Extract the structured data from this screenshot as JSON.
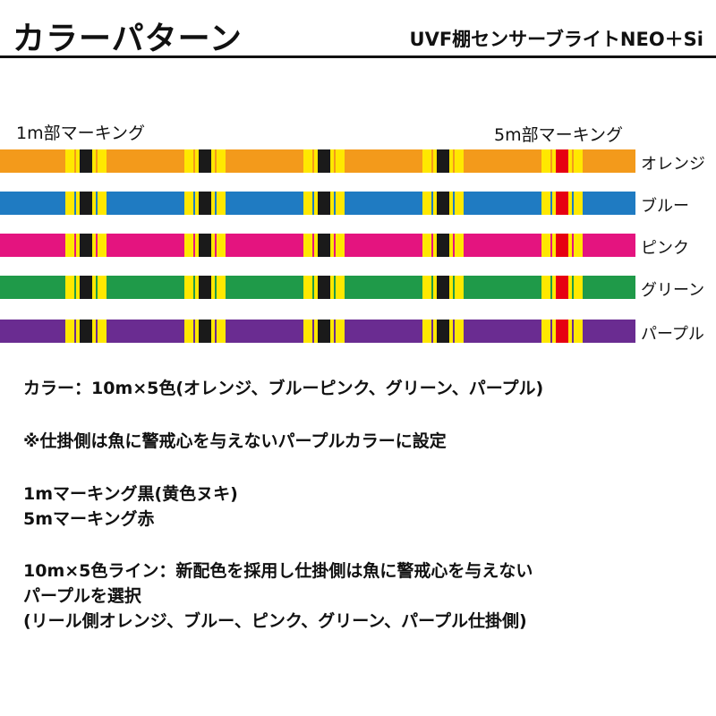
{
  "header": {
    "title": "カラーパターン",
    "product": "UVF棚センサーブライトNEO＋Si"
  },
  "diagram": {
    "label_1m": "1m部マーキング",
    "label_5m": "5m部マーキング",
    "lines": [
      {
        "name": "オレンジ",
        "color": "#f39a1b"
      },
      {
        "name": "ブルー",
        "color": "#1f7bc2"
      },
      {
        "name": "ピンク",
        "color": "#e4147f"
      },
      {
        "name": "グリーン",
        "color": "#1f9a49"
      },
      {
        "name": "パープル",
        "color": "#6a2c91"
      }
    ],
    "marking_yellow": "#ffe800",
    "marking_black": "#1a1a1a",
    "marking_red": "#e60012"
  },
  "description": {
    "line1": "カラー：10m×5色(オレンジ、ブルーピンク、グリーン、パープル)",
    "line2": "※仕掛側は魚に警戒心を与えないパープルカラーに設定",
    "line3": "1mマーキング黒(黄色ヌキ)",
    "line4": "5mマーキング赤",
    "line5": "10m×5色ライン：新配色を採用し仕掛側は魚に警戒心を与えない",
    "line6": "パープルを選択",
    "line7": "(リール側オレンジ、ブルー、ピンク、グリーン、パープル仕掛側)"
  }
}
